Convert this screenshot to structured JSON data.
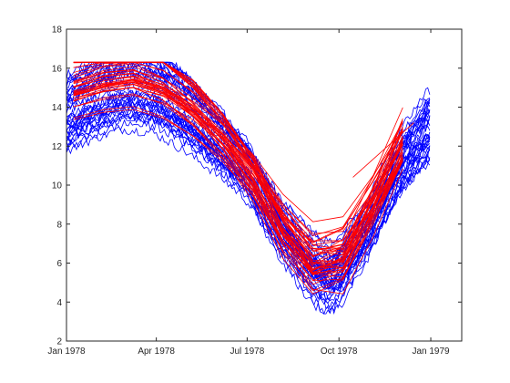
{
  "chart_data": {
    "type": "line",
    "title": "",
    "xlabel": "",
    "ylabel": "",
    "grid": false,
    "legend": "none",
    "xlim": [
      "1978-01-01",
      "1979-02-01"
    ],
    "ylim": [
      2,
      18
    ],
    "x_ticks": [
      {
        "date": "1978-01-01",
        "label": "Jan 1978"
      },
      {
        "date": "1978-04-01",
        "label": "Apr 1978"
      },
      {
        "date": "1978-07-01",
        "label": "Jul 1978"
      },
      {
        "date": "1978-10-01",
        "label": "Oct 1978"
      },
      {
        "date": "1979-01-01",
        "label": "Jan 1979"
      }
    ],
    "y_ticks": [
      {
        "value": 2,
        "label": "2"
      },
      {
        "value": 4,
        "label": "4"
      },
      {
        "value": 6,
        "label": "6"
      },
      {
        "value": 8,
        "label": "8"
      },
      {
        "value": 10,
        "label": "10"
      },
      {
        "value": 12,
        "label": "12"
      },
      {
        "value": 14,
        "label": "14"
      },
      {
        "value": 16,
        "label": "16"
      },
      {
        "value": 18,
        "label": "18"
      }
    ],
    "series_groups": [
      {
        "color": "#0000ff",
        "style": "daily observed curves",
        "count": 40,
        "profile": [
          {
            "date": "1978-01-01",
            "y": 13.6
          },
          {
            "date": "1978-02-01",
            "y": 14.5
          },
          {
            "date": "1978-03-01",
            "y": 15.1
          },
          {
            "date": "1978-04-01",
            "y": 14.9
          },
          {
            "date": "1978-05-01",
            "y": 13.8
          },
          {
            "date": "1978-06-01",
            "y": 12.4
          },
          {
            "date": "1978-07-01",
            "y": 10.8
          },
          {
            "date": "1978-08-01",
            "y": 8.0
          },
          {
            "date": "1978-09-01",
            "y": 6.0
          },
          {
            "date": "1978-09-20",
            "y": 5.2
          },
          {
            "date": "1978-10-01",
            "y": 5.6
          },
          {
            "date": "1978-11-01",
            "y": 8.0
          },
          {
            "date": "1978-12-01",
            "y": 11.0
          },
          {
            "date": "1979-01-01",
            "y": 13.0
          }
        ],
        "spread": 1.4
      },
      {
        "color": "#ff0000",
        "style": "monthly fitted curves",
        "count": 40,
        "profile": [
          {
            "date": "1978-01-08",
            "y": 14.8
          },
          {
            "date": "1978-02-15",
            "y": 15.4
          },
          {
            "date": "1978-03-15",
            "y": 15.5
          },
          {
            "date": "1978-04-15",
            "y": 14.8
          },
          {
            "date": "1978-05-15",
            "y": 13.6
          },
          {
            "date": "1978-06-15",
            "y": 12.0
          },
          {
            "date": "1978-07-15",
            "y": 10.0
          },
          {
            "date": "1978-08-15",
            "y": 7.2
          },
          {
            "date": "1978-09-20",
            "y": 5.6
          },
          {
            "date": "1978-10-15",
            "y": 7.2
          },
          {
            "date": "1978-11-15",
            "y": 10.2
          },
          {
            "date": "1978-12-15",
            "y": 13.2
          }
        ],
        "spread": 1.2,
        "outlier_segment": [
          {
            "date": "1978-10-15",
            "y": 10.4
          },
          {
            "date": "1978-12-15",
            "y": 13.2
          }
        ]
      }
    ]
  }
}
